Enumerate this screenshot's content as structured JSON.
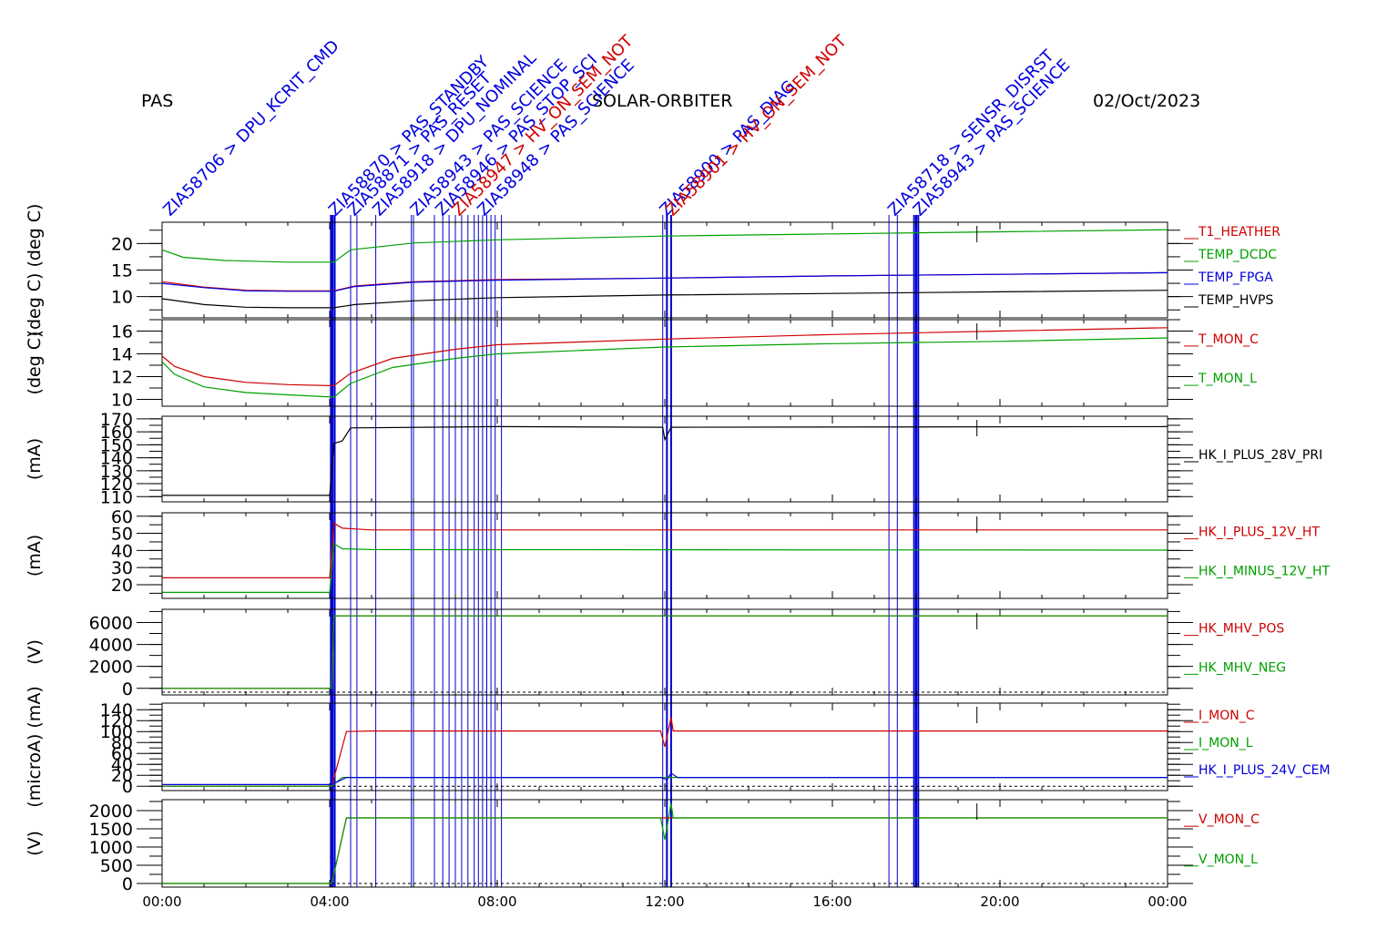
{
  "header": {
    "left": "PAS",
    "center": "SOLAR-ORBITER",
    "right": "02/Oct/2023"
  },
  "colors": {
    "black": "#000000",
    "red": "#d00000",
    "green": "#00a000",
    "blue": "#0000e0",
    "event": "#0000d0"
  },
  "chart_data": {
    "type": "line",
    "x_axis": {
      "range_hours": [
        0,
        24
      ],
      "tick_labels": [
        "00:00",
        "04:00",
        "08:00",
        "12:00",
        "16:00",
        "20:00",
        "00:00"
      ]
    },
    "event_lines_hours": [
      4.03,
      4.07,
      4.12,
      4.5,
      4.65,
      5.1,
      5.95,
      6.0,
      6.5,
      6.7,
      6.85,
      7.0,
      7.15,
      7.3,
      7.45,
      7.55,
      7.65,
      7.75,
      7.85,
      7.95,
      8.1,
      11.95,
      12.05,
      12.15,
      17.35,
      17.55,
      17.95,
      18.0,
      18.05
    ],
    "event_labels": [
      {
        "text": "ZIA58706 > DPU_KCRIT_CMD",
        "t": 0.1,
        "color": "blue"
      },
      {
        "text": "ZIA58870 > PAS_STANDBY",
        "t": 4.05,
        "color": "blue"
      },
      {
        "text": "ZIA58871 > PAS_RESET",
        "t": 4.5,
        "color": "blue"
      },
      {
        "text": "ZIA58918 > DPU_NOMINAL",
        "t": 5.1,
        "color": "blue"
      },
      {
        "text": "ZIA58943 > PAS_SCIENCE",
        "t": 6.0,
        "color": "blue"
      },
      {
        "text": "ZIA58946 > PAS_STOP_SCI",
        "t": 6.6,
        "color": "blue"
      },
      {
        "text": "ZIA58947 > HV_ON_SEM_NOT",
        "t": 7.0,
        "color": "red"
      },
      {
        "text": "ZIA58948 > PAS_SCIENCE",
        "t": 7.6,
        "color": "blue"
      },
      {
        "text": "ZIA58900 > PAS_DIAG",
        "t": 11.95,
        "color": "blue"
      },
      {
        "text": "ZIA58901 > HV_ON_SEM_NOT",
        "t": 12.1,
        "color": "red"
      },
      {
        "text": "ZIA58718 > SENSR_DISRST",
        "t": 17.4,
        "color": "blue"
      },
      {
        "text": "ZIA58943 > PAS_SCIENCE",
        "t": 18.0,
        "color": "blue"
      }
    ],
    "panels": [
      {
        "ylabel": "(deg C) (deg C)",
        "ylim": [
          6,
          24
        ],
        "yticks": [
          "10",
          "15",
          "20"
        ],
        "ytick_values": [
          10,
          15,
          20
        ],
        "series": [
          {
            "name": "T1_HEATHER",
            "color": "red",
            "points": [
              [
                0,
                12.8
              ],
              [
                1,
                11.8
              ],
              [
                2,
                11.2
              ],
              [
                3,
                11.1
              ],
              [
                4.1,
                11.1
              ],
              [
                4.6,
                12.0
              ],
              [
                6,
                12.8
              ],
              [
                8,
                13.2
              ],
              [
                12,
                13.5
              ],
              [
                16,
                13.9
              ],
              [
                20,
                14.2
              ],
              [
                24,
                14.5
              ]
            ]
          },
          {
            "name": "TEMP_DCDC",
            "color": "green",
            "points": [
              [
                0,
                18.8
              ],
              [
                0.5,
                17.4
              ],
              [
                1.5,
                16.8
              ],
              [
                3,
                16.5
              ],
              [
                4.1,
                16.5
              ],
              [
                4.5,
                18.8
              ],
              [
                6,
                20.1
              ],
              [
                8,
                20.7
              ],
              [
                12,
                21.4
              ],
              [
                16,
                21.8
              ],
              [
                20,
                22.2
              ],
              [
                24,
                22.6
              ]
            ]
          },
          {
            "name": "TEMP_FPGA",
            "color": "blue",
            "points": [
              [
                0,
                12.5
              ],
              [
                1,
                11.7
              ],
              [
                2,
                11.1
              ],
              [
                3,
                11.0
              ],
              [
                4.1,
                11.0
              ],
              [
                4.6,
                11.9
              ],
              [
                6,
                12.7
              ],
              [
                8,
                13.1
              ],
              [
                12,
                13.5
              ],
              [
                16,
                13.9
              ],
              [
                20,
                14.2
              ],
              [
                24,
                14.5
              ]
            ]
          },
          {
            "name": "TEMP_HVPS",
            "color": "black",
            "points": [
              [
                0,
                9.6
              ],
              [
                1,
                8.5
              ],
              [
                2,
                8.0
              ],
              [
                3,
                7.9
              ],
              [
                4.1,
                7.9
              ],
              [
                4.6,
                8.5
              ],
              [
                6,
                9.2
              ],
              [
                8,
                9.8
              ],
              [
                12,
                10.3
              ],
              [
                16,
                10.6
              ],
              [
                20,
                10.9
              ],
              [
                24,
                11.2
              ]
            ]
          }
        ]
      },
      {
        "ylabel": "(deg C)",
        "ylim": [
          9.4,
          17
        ],
        "yticks": [
          "10",
          "12",
          "14",
          "16"
        ],
        "ytick_values": [
          10,
          12,
          14,
          16
        ],
        "series": [
          {
            "name": "T_MON_C",
            "color": "red",
            "points": [
              [
                0,
                13.8
              ],
              [
                0.3,
                12.9
              ],
              [
                1,
                12.0
              ],
              [
                2,
                11.5
              ],
              [
                3,
                11.3
              ],
              [
                4.1,
                11.2
              ],
              [
                4.5,
                12.3
              ],
              [
                5.5,
                13.6
              ],
              [
                7,
                14.4
              ],
              [
                8,
                14.8
              ],
              [
                12,
                15.3
              ],
              [
                16,
                15.7
              ],
              [
                20,
                16.0
              ],
              [
                24,
                16.3
              ]
            ]
          },
          {
            "name": "T_MON_L",
            "color": "green",
            "points": [
              [
                0,
                13.3
              ],
              [
                0.3,
                12.2
              ],
              [
                1,
                11.1
              ],
              [
                2,
                10.6
              ],
              [
                3,
                10.4
              ],
              [
                4.1,
                10.2
              ],
              [
                4.5,
                11.4
              ],
              [
                5.5,
                12.8
              ],
              [
                7,
                13.6
              ],
              [
                8,
                14.0
              ],
              [
                12,
                14.6
              ],
              [
                16,
                14.9
              ],
              [
                20,
                15.1
              ],
              [
                24,
                15.4
              ]
            ]
          }
        ]
      },
      {
        "ylabel": "(mA)",
        "ylim": [
          106,
          172
        ],
        "yticks": [
          "110",
          "120",
          "130",
          "140",
          "150",
          "160",
          "170"
        ],
        "ytick_values": [
          110,
          120,
          130,
          140,
          150,
          160,
          170
        ],
        "series": [
          {
            "name": "HK_I_PLUS_28V_PRI",
            "color": "black",
            "points": [
              [
                0,
                111
              ],
              [
                4.0,
                111
              ],
              [
                4.1,
                151
              ],
              [
                4.3,
                153
              ],
              [
                4.5,
                163
              ],
              [
                8,
                164
              ],
              [
                11.95,
                163.5
              ],
              [
                12.0,
                154
              ],
              [
                12.15,
                163.5
              ],
              [
                24,
                164
              ]
            ]
          }
        ]
      },
      {
        "ylabel": "(mA)",
        "ylim": [
          12,
          62
        ],
        "yticks": [
          "20",
          "30",
          "40",
          "50",
          "60"
        ],
        "ytick_values": [
          20,
          30,
          40,
          50,
          60
        ],
        "series": [
          {
            "name": "HK_I_PLUS_12V_HT",
            "color": "red",
            "points": [
              [
                0,
                24
              ],
              [
                4.0,
                24
              ],
              [
                4.1,
                56
              ],
              [
                4.3,
                53
              ],
              [
                5,
                52
              ],
              [
                24,
                52
              ]
            ]
          },
          {
            "name": "HK_I_MINUS_12V_HT",
            "color": "green",
            "points": [
              [
                0,
                15.5
              ],
              [
                4.0,
                15.5
              ],
              [
                4.1,
                44
              ],
              [
                4.3,
                41
              ],
              [
                5,
                40.5
              ],
              [
                24,
                40.2
              ]
            ]
          }
        ]
      },
      {
        "ylabel": "(V)",
        "ylim": [
          -600,
          7200
        ],
        "yticks": [
          "0",
          "2000",
          "4000",
          "6000"
        ],
        "ytick_values": [
          0,
          2000,
          4000,
          6000
        ],
        "dashed_zero": -350,
        "series": [
          {
            "name": "HK_MHV_POS",
            "color": "red",
            "points": [
              [
                0,
                0
              ],
              [
                4.05,
                0
              ],
              [
                4.1,
                6600
              ],
              [
                24,
                6600
              ]
            ]
          },
          {
            "name": "HK_MHV_NEG",
            "color": "green",
            "points": [
              [
                0,
                0
              ],
              [
                4.05,
                0
              ],
              [
                4.1,
                6600
              ],
              [
                24,
                6600
              ]
            ]
          }
        ]
      },
      {
        "ylabel": "(microA) (mA)",
        "ylim": [
          -8,
          152
        ],
        "yticks": [
          "0",
          "20",
          "40",
          "60",
          "80",
          "100",
          "120",
          "140"
        ],
        "ytick_values": [
          0,
          20,
          40,
          60,
          80,
          100,
          120,
          140
        ],
        "dashed_zero": 0,
        "series": [
          {
            "name": "I_MON_C",
            "color": "red",
            "points": [
              [
                0,
                0
              ],
              [
                4.05,
                0
              ],
              [
                4.4,
                100
              ],
              [
                5,
                101
              ],
              [
                11.9,
                101
              ],
              [
                12.0,
                72
              ],
              [
                12.15,
                126
              ],
              [
                12.2,
                101
              ],
              [
                24,
                101
              ]
            ]
          },
          {
            "name": "I_MON_L",
            "color": "green",
            "points": [
              [
                0,
                0
              ],
              [
                4.05,
                0
              ],
              [
                4.3,
                16
              ],
              [
                24,
                16
              ]
            ]
          },
          {
            "name": "HK_I_PLUS_24V_CEM",
            "color": "blue",
            "points": [
              [
                0,
                3
              ],
              [
                4.05,
                3
              ],
              [
                4.4,
                16
              ],
              [
                11.9,
                16
              ],
              [
                12.05,
                12
              ],
              [
                12.15,
                24
              ],
              [
                12.3,
                16
              ],
              [
                24,
                16
              ]
            ]
          }
        ]
      },
      {
        "ylabel": "(V)",
        "ylim": [
          -100,
          2300
        ],
        "yticks": [
          "0",
          "500",
          "1000",
          "1500",
          "2000"
        ],
        "ytick_values": [
          0,
          500,
          1000,
          1500,
          2000
        ],
        "dashed_zero": 0,
        "series": [
          {
            "name": "V_MON_C",
            "color": "red",
            "points": [
              [
                0,
                0
              ],
              [
                4.05,
                0
              ],
              [
                4.4,
                1800
              ],
              [
                24,
                1800
              ]
            ]
          },
          {
            "name": "V_MON_L",
            "color": "green",
            "points": [
              [
                0,
                0
              ],
              [
                4.05,
                0
              ],
              [
                4.4,
                1800
              ],
              [
                11.9,
                1800
              ],
              [
                12.0,
                1200
              ],
              [
                12.15,
                2200
              ],
              [
                12.2,
                1800
              ],
              [
                24,
                1800
              ]
            ]
          }
        ]
      }
    ]
  }
}
